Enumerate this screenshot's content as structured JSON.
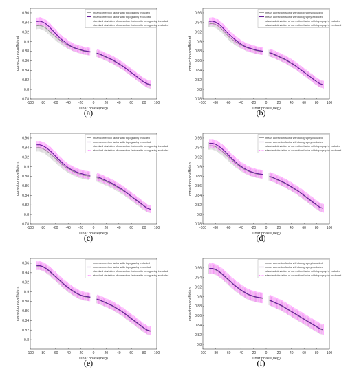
{
  "figure": {
    "panel_labels": [
      "(a)",
      "(b)",
      "(c)",
      "(d)",
      "(e)",
      "(f)"
    ],
    "colors": {
      "mean_included": "#8c8c8c",
      "mean_excluded": "#6a1f9e",
      "std_included": "#b8b8b8",
      "std_excluded": "#ff66ff"
    }
  },
  "chart_data": [
    {
      "type": "line",
      "xlabel": "lunar phase(deg)",
      "ylabel": "correction coefficient",
      "xlim": [
        -100,
        100
      ],
      "ylim": [
        0.78,
        0.97
      ],
      "xticks": [
        -100,
        -80,
        -60,
        -40,
        -20,
        0,
        20,
        40,
        60,
        80,
        100
      ],
      "yticks": [
        0.78,
        0.8,
        0.82,
        0.84,
        0.86,
        0.88,
        0.9,
        0.92,
        0.94,
        0.96
      ],
      "legend_position": "top-right",
      "legend": [
        "mean correction factor with topography included",
        "mean correction factor with topography excluded",
        "standard deviation of correction factor with topography included",
        "standard deviation of correction factor with topography excluded"
      ],
      "x": [
        -90,
        -85,
        -80,
        -75,
        -70,
        -65,
        -60,
        -55,
        -50,
        -45,
        -40,
        -35,
        -30,
        -25,
        -20,
        -15,
        -10,
        -5,
        5,
        10,
        15,
        20,
        25,
        30,
        35,
        40,
        45,
        50,
        55,
        60,
        65,
        70,
        75,
        80,
        85,
        90
      ],
      "series": [
        {
          "name": "mean correction factor with topography included",
          "values": [
            0.933,
            0.934,
            0.932,
            0.928,
            0.922,
            0.916,
            0.91,
            0.905,
            0.9,
            0.896,
            0.892,
            0.889,
            0.886,
            0.884,
            0.882,
            0.88,
            0.879,
            0.878,
            0.875,
            0.873,
            0.87,
            0.867,
            0.864,
            0.861,
            0.857,
            0.853,
            0.849,
            0.845,
            0.84,
            0.835,
            0.83,
            0.825,
            0.82,
            0.815,
            0.811,
            0.808
          ],
          "std": 0.007
        },
        {
          "name": "mean correction factor with topography excluded",
          "values": [
            0.942,
            0.943,
            0.941,
            0.937,
            0.931,
            0.924,
            0.917,
            0.91,
            0.904,
            0.899,
            0.894,
            0.89,
            0.887,
            0.885,
            0.883,
            0.881,
            0.88,
            0.879,
            0.876,
            0.874,
            0.871,
            0.868,
            0.865,
            0.862,
            0.858,
            0.854,
            0.85,
            0.845,
            0.84,
            0.835,
            0.83,
            0.825,
            0.82,
            0.815,
            0.812,
            0.81
          ],
          "std": 0.008
        }
      ]
    },
    {
      "type": "line",
      "xlabel": "lunar phase(deg)",
      "ylabel": "correction coefficient",
      "xlim": [
        -100,
        100
      ],
      "ylim": [
        0.78,
        0.97
      ],
      "xticks": [
        -100,
        -80,
        -60,
        -40,
        -20,
        0,
        20,
        40,
        60,
        80,
        100
      ],
      "yticks": [
        0.78,
        0.8,
        0.82,
        0.84,
        0.86,
        0.88,
        0.9,
        0.92,
        0.94,
        0.96
      ],
      "legend_position": "top-right",
      "legend": [
        "mean correction factor with topography included",
        "mean correction factor with topography excluded",
        "standard deviation of correction factor with topography included",
        "standard deviation of correction factor with topography excluded"
      ],
      "x": [
        -90,
        -85,
        -80,
        -75,
        -70,
        -65,
        -60,
        -55,
        -50,
        -45,
        -40,
        -35,
        -30,
        -25,
        -20,
        -15,
        -10,
        -5,
        5,
        10,
        15,
        20,
        25,
        30,
        35,
        40,
        45,
        50,
        55,
        60,
        65,
        70,
        75,
        80,
        85,
        90
      ],
      "series": [
        {
          "name": "mean correction factor with topography included",
          "values": [
            0.937,
            0.938,
            0.936,
            0.932,
            0.926,
            0.919,
            0.912,
            0.906,
            0.901,
            0.897,
            0.893,
            0.89,
            0.887,
            0.885,
            0.883,
            0.881,
            0.88,
            0.879,
            0.876,
            0.874,
            0.871,
            0.868,
            0.865,
            0.862,
            0.858,
            0.854,
            0.85,
            0.846,
            0.841,
            0.836,
            0.831,
            0.826,
            0.821,
            0.816,
            0.812,
            0.81
          ],
          "std": 0.007
        },
        {
          "name": "mean correction factor with topography excluded",
          "values": [
            0.942,
            0.943,
            0.941,
            0.937,
            0.931,
            0.924,
            0.917,
            0.911,
            0.905,
            0.9,
            0.895,
            0.891,
            0.888,
            0.886,
            0.884,
            0.882,
            0.881,
            0.88,
            0.877,
            0.875,
            0.872,
            0.869,
            0.866,
            0.863,
            0.859,
            0.855,
            0.851,
            0.846,
            0.841,
            0.836,
            0.831,
            0.826,
            0.821,
            0.816,
            0.812,
            0.81
          ],
          "std": 0.008
        }
      ]
    },
    {
      "type": "line",
      "xlabel": "lunar phase(deg)",
      "ylabel": "correction coefficient",
      "xlim": [
        -100,
        100
      ],
      "ylim": [
        0.78,
        0.97
      ],
      "xticks": [
        -100,
        -80,
        -60,
        -40,
        -20,
        0,
        20,
        40,
        60,
        80,
        100
      ],
      "yticks": [
        0.78,
        0.8,
        0.82,
        0.84,
        0.86,
        0.88,
        0.9,
        0.92,
        0.94,
        0.96
      ],
      "legend_position": "top-right",
      "legend": [
        "mean correction factor with topography included",
        "mean correction factor with topography excluded",
        "standard deviation of correction factor with topography included",
        "standard deviation of correction factor with topography excluded"
      ],
      "x": [
        -90,
        -85,
        -80,
        -75,
        -70,
        -65,
        -60,
        -55,
        -50,
        -45,
        -40,
        -35,
        -30,
        -25,
        -20,
        -15,
        -10,
        -5,
        5,
        10,
        15,
        20,
        25,
        30,
        35,
        40,
        45,
        50,
        55,
        60,
        65,
        70,
        75,
        80,
        85,
        90
      ],
      "series": [
        {
          "name": "mean correction factor with topography included",
          "values": [
            0.94,
            0.94,
            0.938,
            0.934,
            0.929,
            0.923,
            0.917,
            0.911,
            0.905,
            0.9,
            0.896,
            0.892,
            0.889,
            0.886,
            0.884,
            0.882,
            0.881,
            0.88,
            0.877,
            0.875,
            0.872,
            0.869,
            0.866,
            0.863,
            0.859,
            0.855,
            0.851,
            0.847,
            0.842,
            0.837,
            0.832,
            0.827,
            0.822,
            0.817,
            0.813,
            0.811
          ],
          "std": 0.008
        },
        {
          "name": "mean correction factor with topography excluded",
          "values": [
            0.946,
            0.946,
            0.944,
            0.94,
            0.935,
            0.929,
            0.922,
            0.915,
            0.909,
            0.903,
            0.898,
            0.894,
            0.891,
            0.888,
            0.886,
            0.884,
            0.883,
            0.882,
            0.879,
            0.877,
            0.874,
            0.871,
            0.868,
            0.865,
            0.861,
            0.857,
            0.853,
            0.848,
            0.843,
            0.838,
            0.833,
            0.828,
            0.823,
            0.818,
            0.813,
            0.811
          ],
          "std": 0.008
        }
      ]
    },
    {
      "type": "line",
      "xlabel": "lunar phase(deg)",
      "ylabel": "correction coefficient",
      "xlim": [
        -100,
        100
      ],
      "ylim": [
        0.78,
        0.97
      ],
      "xticks": [
        -100,
        -80,
        -60,
        -40,
        -20,
        0,
        20,
        40,
        60,
        80,
        100
      ],
      "yticks": [
        0.78,
        0.8,
        0.82,
        0.84,
        0.86,
        0.88,
        0.9,
        0.92,
        0.94,
        0.96
      ],
      "legend_position": "top-right",
      "legend": [
        "mean correction factor with topography included",
        "mean correction factor with topography excluded",
        "standard deviation of correction factor with topography included",
        "standard deviation of correction factor with topography excluded"
      ],
      "x": [
        -90,
        -85,
        -80,
        -75,
        -70,
        -65,
        -60,
        -55,
        -50,
        -45,
        -40,
        -35,
        -30,
        -25,
        -20,
        -15,
        -10,
        -5,
        5,
        10,
        15,
        20,
        25,
        30,
        35,
        40,
        45,
        50,
        55,
        60,
        65,
        70,
        75,
        80,
        85,
        90
      ],
      "series": [
        {
          "name": "mean correction factor with topography included",
          "values": [
            0.944,
            0.944,
            0.942,
            0.938,
            0.933,
            0.927,
            0.921,
            0.915,
            0.909,
            0.904,
            0.899,
            0.895,
            0.892,
            0.889,
            0.887,
            0.885,
            0.884,
            0.883,
            0.879,
            0.877,
            0.874,
            0.871,
            0.868,
            0.865,
            0.861,
            0.857,
            0.853,
            0.849,
            0.844,
            0.839,
            0.834,
            0.829,
            0.824,
            0.819,
            0.815,
            0.813
          ],
          "std": 0.008
        },
        {
          "name": "mean correction factor with topography excluded",
          "values": [
            0.949,
            0.949,
            0.947,
            0.943,
            0.938,
            0.932,
            0.925,
            0.918,
            0.912,
            0.906,
            0.901,
            0.897,
            0.893,
            0.89,
            0.888,
            0.886,
            0.885,
            0.884,
            0.88,
            0.878,
            0.875,
            0.872,
            0.869,
            0.866,
            0.862,
            0.858,
            0.854,
            0.85,
            0.845,
            0.84,
            0.835,
            0.83,
            0.825,
            0.82,
            0.815,
            0.813
          ],
          "std": 0.009
        }
      ]
    },
    {
      "type": "line",
      "xlabel": "lunar phase(deg)",
      "ylabel": "correction coefficient",
      "xlim": [
        -100,
        100
      ],
      "ylim": [
        0.78,
        0.97
      ],
      "xticks": [
        -100,
        -80,
        -60,
        -40,
        -20,
        0,
        20,
        40,
        60,
        80,
        100
      ],
      "yticks": [
        0.8,
        0.82,
        0.84,
        0.86,
        0.88,
        0.9,
        0.92,
        0.94,
        0.96
      ],
      "legend_position": "top-right",
      "legend": [
        "mean correction factor with topography included",
        "mean correction factor with topography excluded",
        "standard deviation of correction factor with topography included",
        "standard deviation of correction factor with topography excluded"
      ],
      "x": [
        -90,
        -85,
        -80,
        -75,
        -70,
        -65,
        -60,
        -55,
        -50,
        -45,
        -40,
        -35,
        -30,
        -25,
        -20,
        -15,
        -10,
        -5,
        5,
        10,
        15,
        20,
        25,
        30,
        35,
        40,
        45,
        50,
        55,
        60,
        65,
        70,
        75,
        80,
        85,
        90
      ],
      "series": [
        {
          "name": "mean correction factor with topography included",
          "values": [
            0.954,
            0.954,
            0.952,
            0.948,
            0.943,
            0.937,
            0.931,
            0.925,
            0.919,
            0.913,
            0.908,
            0.903,
            0.899,
            0.895,
            0.892,
            0.89,
            0.889,
            0.888,
            0.884,
            0.882,
            0.879,
            0.876,
            0.873,
            0.87,
            0.866,
            0.862,
            0.858,
            0.853,
            0.848,
            0.843,
            0.838,
            0.833,
            0.828,
            0.823,
            0.819,
            0.817
          ],
          "std": 0.008
        },
        {
          "name": "mean correction factor with topography excluded",
          "values": [
            0.955,
            0.955,
            0.953,
            0.949,
            0.944,
            0.938,
            0.932,
            0.926,
            0.92,
            0.914,
            0.909,
            0.904,
            0.9,
            0.896,
            0.893,
            0.891,
            0.89,
            0.889,
            0.885,
            0.883,
            0.88,
            0.877,
            0.874,
            0.871,
            0.867,
            0.863,
            0.859,
            0.854,
            0.849,
            0.844,
            0.839,
            0.834,
            0.829,
            0.824,
            0.82,
            0.818
          ],
          "std": 0.009
        }
      ]
    },
    {
      "type": "line",
      "xlabel": "lunar phase(deg)",
      "ylabel": "correction coefficient",
      "xlim": [
        -100,
        100
      ],
      "ylim": [
        0.79,
        0.98
      ],
      "xticks": [
        -100,
        -80,
        -60,
        -40,
        -20,
        0,
        20,
        40,
        60,
        80,
        100
      ],
      "yticks": [
        0.8,
        0.82,
        0.84,
        0.86,
        0.88,
        0.9,
        0.92,
        0.94,
        0.96
      ],
      "legend_position": "top-right",
      "legend": [
        "mean correction factor with topography included",
        "mean correction factor with topography excluded",
        "standard deviation of correction factor with topography included",
        "standard deviation of correction factor with topography excluded"
      ],
      "x": [
        -90,
        -85,
        -80,
        -75,
        -70,
        -65,
        -60,
        -55,
        -50,
        -45,
        -40,
        -35,
        -30,
        -25,
        -20,
        -15,
        -10,
        -5,
        5,
        10,
        15,
        20,
        25,
        30,
        35,
        40,
        45,
        50,
        55,
        60,
        65,
        70,
        75,
        80,
        85,
        90
      ],
      "series": [
        {
          "name": "mean correction factor with topography included",
          "values": [
            0.958,
            0.958,
            0.956,
            0.952,
            0.947,
            0.941,
            0.935,
            0.929,
            0.923,
            0.918,
            0.913,
            0.909,
            0.905,
            0.902,
            0.9,
            0.898,
            0.897,
            0.896,
            0.892,
            0.889,
            0.886,
            0.883,
            0.88,
            0.876,
            0.872,
            0.868,
            0.864,
            0.86,
            0.856,
            0.852,
            0.848,
            0.844,
            0.84,
            0.836,
            0.832,
            0.83
          ],
          "std": 0.01
        },
        {
          "name": "mean correction factor with topography excluded",
          "values": [
            0.959,
            0.959,
            0.957,
            0.953,
            0.948,
            0.942,
            0.936,
            0.93,
            0.924,
            0.919,
            0.914,
            0.91,
            0.906,
            0.903,
            0.901,
            0.899,
            0.898,
            0.897,
            0.893,
            0.89,
            0.887,
            0.884,
            0.881,
            0.877,
            0.873,
            0.869,
            0.865,
            0.861,
            0.857,
            0.853,
            0.849,
            0.845,
            0.841,
            0.837,
            0.833,
            0.831
          ],
          "std": 0.011
        }
      ]
    }
  ]
}
